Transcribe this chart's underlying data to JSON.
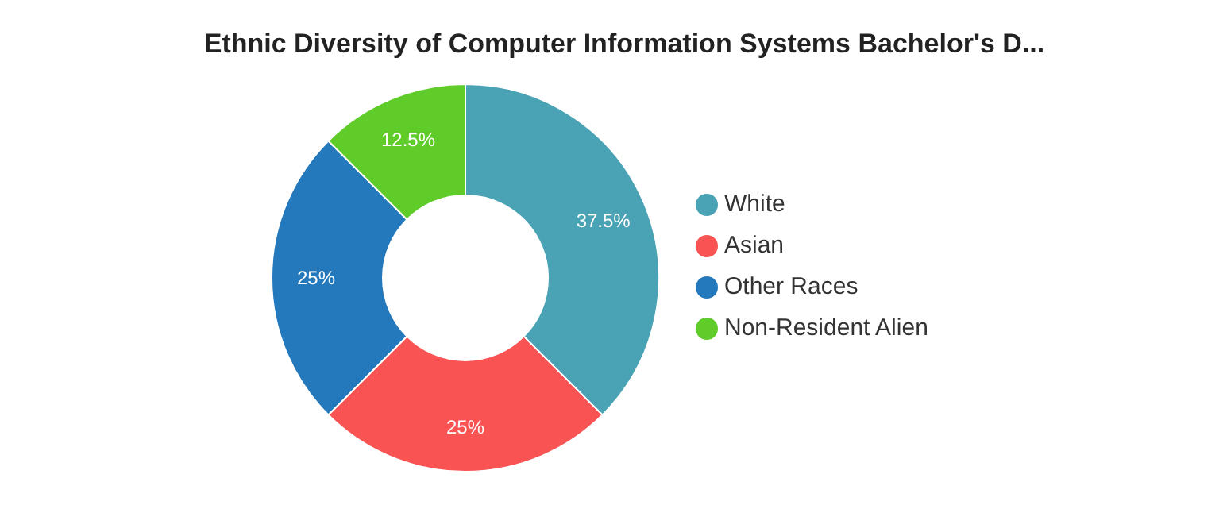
{
  "chart_data": {
    "type": "donut",
    "title": "Ethnic Diversity of Computer Information Systems Bachelor's D...",
    "categories": [
      "White",
      "Asian",
      "Other Races",
      "Non-Resident Alien"
    ],
    "values": [
      37.5,
      25,
      25,
      12.5
    ],
    "colors": [
      "#4aa3b5",
      "#f95353",
      "#2479bd",
      "#5fcc2a"
    ],
    "value_labels": [
      "37.5%",
      "25%",
      "25%",
      "12.5%"
    ],
    "legend": "right"
  }
}
